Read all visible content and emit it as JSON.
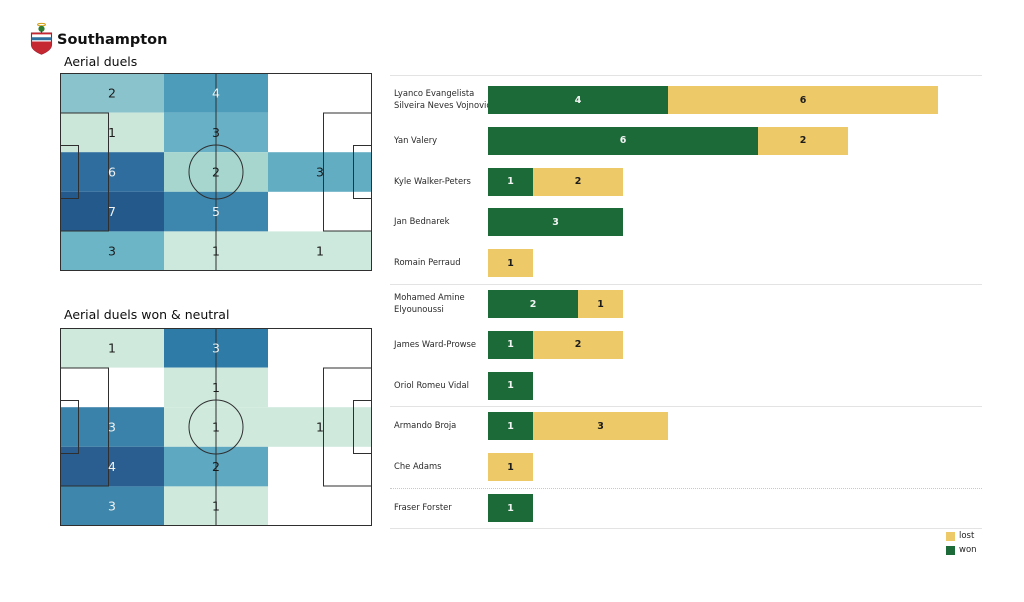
{
  "header": {
    "team": "Southampton"
  },
  "colors": {
    "won": "#1d6a39",
    "lost": "#edc968",
    "won_text": "#f0f4f2",
    "lost_text": "#1c1c1c",
    "pitch_line": "#2f2f2f",
    "cell_text_dark": "#1b1b1b",
    "cell_text_light": "#eef2f1",
    "divider": "#e3e3e3",
    "divider_dotted": "#c9c9c9"
  },
  "pitches": [
    {
      "title": "Aerial duels",
      "grid": {
        "rows": 5,
        "cols": 3
      },
      "cells": [
        {
          "r": 0,
          "c": 0,
          "v": "2",
          "bg": "#8bc3cd",
          "fg": "dark"
        },
        {
          "r": 0,
          "c": 1,
          "v": "4",
          "bg": "#4d9cba",
          "fg": "light"
        },
        {
          "r": 1,
          "c": 0,
          "v": "1",
          "bg": "#cbe7da",
          "fg": "dark"
        },
        {
          "r": 1,
          "c": 1,
          "v": "3",
          "bg": "#68b0c6",
          "fg": "dark"
        },
        {
          "r": 2,
          "c": 0,
          "v": "6",
          "bg": "#2e6d9e",
          "fg": "light"
        },
        {
          "r": 2,
          "c": 1,
          "v": "2",
          "bg": "#a7d6cf",
          "fg": "dark"
        },
        {
          "r": 2,
          "c": 2,
          "v": "3",
          "bg": "#63adc3",
          "fg": "dark"
        },
        {
          "r": 3,
          "c": 0,
          "v": "7",
          "bg": "#24598c",
          "fg": "light"
        },
        {
          "r": 3,
          "c": 1,
          "v": "5",
          "bg": "#3d87ae",
          "fg": "light"
        },
        {
          "r": 4,
          "c": 0,
          "v": "3",
          "bg": "#6cb5c6",
          "fg": "dark"
        },
        {
          "r": 4,
          "c": 1,
          "v": "1",
          "bg": "#cde8dc",
          "fg": "dark"
        },
        {
          "r": 4,
          "c": 2,
          "v": "1",
          "bg": "#cde8dc",
          "fg": "dark"
        }
      ]
    },
    {
      "title": "Aerial duels won & neutral",
      "grid": {
        "rows": 5,
        "cols": 3
      },
      "cells": [
        {
          "r": 0,
          "c": 0,
          "v": "1",
          "bg": "#cfe9dd",
          "fg": "dark"
        },
        {
          "r": 0,
          "c": 1,
          "v": "3",
          "bg": "#2e7ba7",
          "fg": "light"
        },
        {
          "r": 1,
          "c": 1,
          "v": "1",
          "bg": "#cfe9dd",
          "fg": "dark"
        },
        {
          "r": 2,
          "c": 0,
          "v": "3",
          "bg": "#3a82aa",
          "fg": "light"
        },
        {
          "r": 2,
          "c": 1,
          "v": "1",
          "bg": "#cfe9dd",
          "fg": "dark"
        },
        {
          "r": 2,
          "c": 2,
          "v": "1",
          "bg": "#cfe9dd",
          "fg": "dark"
        },
        {
          "r": 3,
          "c": 0,
          "v": "4",
          "bg": "#2a5e90",
          "fg": "light"
        },
        {
          "r": 3,
          "c": 1,
          "v": "2",
          "bg": "#5ea8c2",
          "fg": "dark"
        },
        {
          "r": 4,
          "c": 0,
          "v": "3",
          "bg": "#3e86ac",
          "fg": "light"
        },
        {
          "r": 4,
          "c": 1,
          "v": "1",
          "bg": "#cfe9dd",
          "fg": "dark"
        }
      ]
    }
  ],
  "chart_data": {
    "type": "bar",
    "orientation": "horizontal",
    "stacked": true,
    "title": "",
    "xlabel": "",
    "ylabel": "",
    "grid": false,
    "categories": [
      "Lyanco Evangelista Silveira Neves Vojnović",
      "Yan Valery",
      "Kyle Walker-Peters",
      "Jan Bednarek",
      "Romain Perraud",
      "Mohamed Amine Elyounoussi",
      "James Ward-Prowse",
      "Oriol Romeu Vidal",
      "Armando Broja",
      "Che Adams",
      "Fraser Forster"
    ],
    "label_lines": [
      [
        "Lyanco Evangelista",
        "Silveira Neves Vojnović"
      ],
      [
        "Yan Valery"
      ],
      [
        "Kyle Walker-Peters"
      ],
      [
        "Jan Bednarek"
      ],
      [
        "Romain Perraud"
      ],
      [
        "Mohamed Amine",
        "Elyounoussi"
      ],
      [
        "James  Ward-Prowse"
      ],
      [
        "Oriol Romeu Vidal"
      ],
      [
        "Armando Broja"
      ],
      [
        "Che Adams"
      ],
      [
        "Fraser Forster"
      ]
    ],
    "series": [
      {
        "name": "won",
        "values": [
          4,
          6,
          1,
          3,
          0,
          2,
          1,
          1,
          1,
          0,
          1
        ]
      },
      {
        "name": "lost",
        "values": [
          6,
          2,
          2,
          0,
          1,
          1,
          2,
          0,
          3,
          1,
          0
        ]
      }
    ],
    "segment_order": [
      "won",
      "lost"
    ],
    "dividers": [
      {
        "after": -1,
        "style": "solid"
      },
      {
        "after": 4,
        "style": "solid"
      },
      {
        "after": 7,
        "style": "solid"
      },
      {
        "after": 9,
        "style": "dotted"
      },
      {
        "after": 10,
        "style": "solid"
      }
    ],
    "legend": [
      {
        "label": "lost",
        "series": "lost"
      },
      {
        "label": "won",
        "series": "won"
      }
    ],
    "legend_position": "bottom-right"
  }
}
